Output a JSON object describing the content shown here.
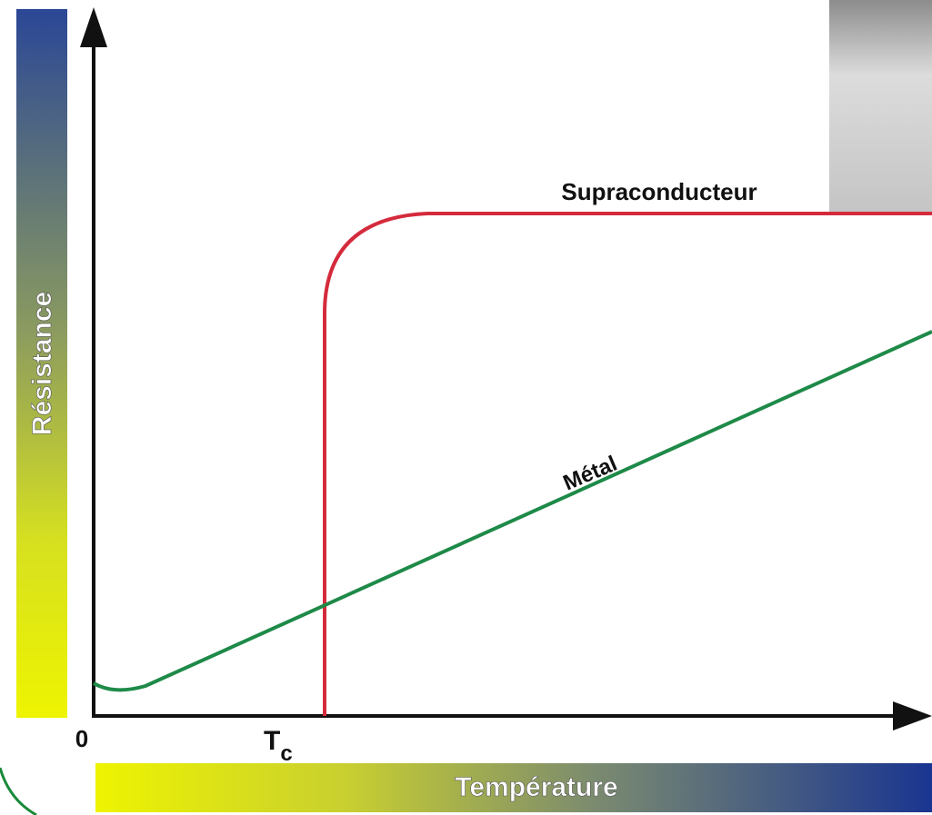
{
  "y_axis": {
    "label": "Résistance"
  },
  "x_axis": {
    "label": "Température",
    "origin": "0",
    "critical_temperature": {
      "main": "T",
      "sub": "c"
    }
  },
  "curves": [
    {
      "label": "Supraconducteur"
    },
    {
      "label": "Métal"
    }
  ]
}
